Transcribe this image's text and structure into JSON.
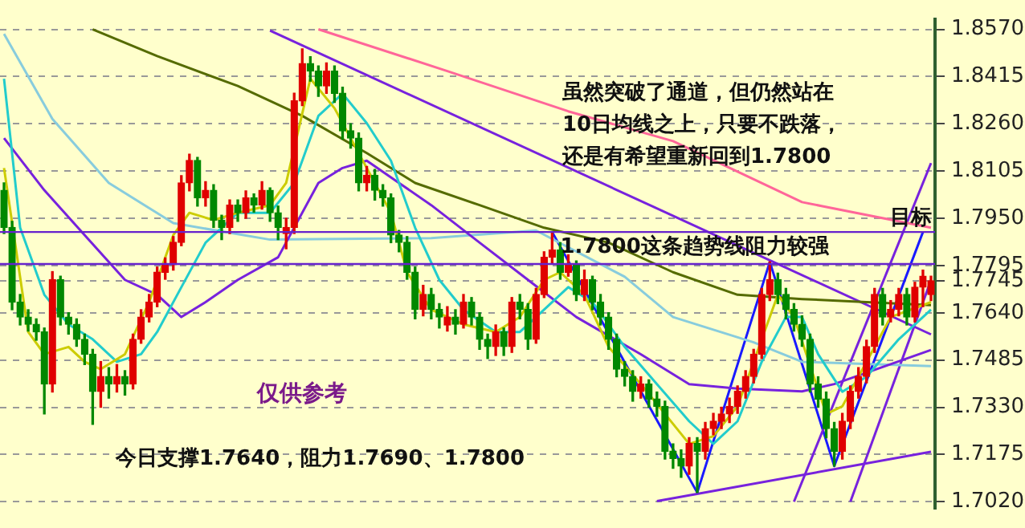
{
  "chart_data": {
    "type": "candlestick",
    "categories": [
      null,
      null,
      null,
      null,
      null,
      null,
      null,
      null,
      null,
      null,
      null,
      null,
      null,
      null,
      null,
      null,
      null,
      null,
      null,
      null,
      null,
      null,
      null,
      null,
      null,
      null,
      null,
      null,
      null,
      null,
      null,
      null,
      null,
      null,
      null,
      null,
      null,
      null,
      null,
      null,
      null,
      null,
      null,
      null,
      null,
      null,
      null,
      null,
      null,
      null,
      null,
      null,
      null,
      null,
      null,
      null,
      null,
      null,
      null,
      null,
      null,
      null,
      null,
      null,
      null,
      null,
      null,
      null,
      null,
      null,
      null,
      null,
      null,
      null,
      null,
      null,
      null,
      null,
      null,
      null,
      null,
      null,
      null,
      null,
      null,
      null,
      null,
      null,
      null,
      null,
      null,
      null,
      null,
      null,
      null,
      null,
      null,
      null,
      null,
      null,
      null,
      null,
      null,
      null,
      null,
      null,
      null,
      null,
      null,
      null,
      null,
      null,
      null,
      null,
      null,
      null
    ],
    "ohlc": [
      [
        1.8042,
        1.8066,
        1.79,
        1.792
      ],
      [
        1.792,
        1.794,
        1.765,
        1.7675
      ],
      [
        1.7675,
        1.77,
        1.76,
        1.7626
      ],
      [
        1.7626,
        1.765,
        1.758,
        1.7602
      ],
      [
        1.7602,
        1.762,
        1.755,
        1.7577
      ],
      [
        1.7577,
        1.759,
        1.7308,
        1.7406
      ],
      [
        1.7406,
        1.7775,
        1.738,
        1.7749
      ],
      [
        1.7749,
        1.776,
        1.76,
        1.7626
      ],
      [
        1.7626,
        1.764,
        1.757,
        1.7602
      ],
      [
        1.7602,
        1.762,
        1.753,
        1.7553
      ],
      [
        1.7553,
        1.757,
        1.747,
        1.7504
      ],
      [
        1.7504,
        1.752,
        1.7274,
        1.7382
      ],
      [
        1.7382,
        1.748,
        1.733,
        1.7431
      ],
      [
        1.7431,
        1.746,
        1.736,
        1.7406
      ],
      [
        1.7406,
        1.747,
        1.738,
        1.7431
      ],
      [
        1.7431,
        1.745,
        1.737,
        1.7406
      ],
      [
        1.7406,
        1.757,
        1.739,
        1.7553
      ],
      [
        1.7553,
        1.765,
        1.754,
        1.7626
      ],
      [
        1.7626,
        1.77,
        1.761,
        1.7675
      ],
      [
        1.7675,
        1.779,
        1.766,
        1.7773
      ],
      [
        1.7773,
        1.782,
        1.775,
        1.7798
      ],
      [
        1.7798,
        1.789,
        1.778,
        1.7871
      ],
      [
        1.7871,
        1.809,
        1.786,
        1.8066
      ],
      [
        1.8066,
        1.816,
        1.804,
        1.814
      ],
      [
        1.814,
        1.815,
        1.799,
        1.8017
      ],
      [
        1.8017,
        1.807,
        1.799,
        1.8042
      ],
      [
        1.8042,
        1.806,
        1.792,
        1.7944
      ],
      [
        1.7944,
        1.796,
        1.788,
        1.792
      ],
      [
        1.792,
        1.801,
        1.79,
        1.7993
      ],
      [
        1.7993,
        1.801,
        1.794,
        1.7968
      ],
      [
        1.7968,
        1.804,
        1.795,
        1.8017
      ],
      [
        1.8017,
        1.803,
        1.797,
        1.7993
      ],
      [
        1.7993,
        1.807,
        1.798,
        1.8042
      ],
      [
        1.8042,
        1.805,
        1.794,
        1.7968
      ],
      [
        1.7968,
        1.799,
        1.788,
        1.792
      ],
      [
        1.79,
        1.795,
        1.785,
        1.792
      ],
      [
        1.792,
        1.836,
        1.79,
        1.8335
      ],
      [
        1.8335,
        1.8506,
        1.832,
        1.8458
      ],
      [
        1.8458,
        1.848,
        1.84,
        1.8433
      ],
      [
        1.8433,
        1.845,
        1.835,
        1.8384
      ],
      [
        1.8384,
        1.846,
        1.836,
        1.8433
      ],
      [
        1.8433,
        1.845,
        1.833,
        1.836
      ],
      [
        1.836,
        1.838,
        1.821,
        1.8237
      ],
      [
        1.8237,
        1.826,
        1.818,
        1.8213
      ],
      [
        1.8213,
        1.823,
        1.804,
        1.8066
      ],
      [
        1.8066,
        1.812,
        1.804,
        1.8091
      ],
      [
        1.8091,
        1.811,
        1.801,
        1.8042
      ],
      [
        1.8042,
        1.806,
        1.799,
        1.8017
      ],
      [
        1.8017,
        1.803,
        1.787,
        1.7895
      ],
      [
        1.7895,
        1.791,
        1.784,
        1.7871
      ],
      [
        1.7871,
        1.789,
        1.775,
        1.7773
      ],
      [
        1.7773,
        1.779,
        1.762,
        1.7651
      ],
      [
        1.7651,
        1.773,
        1.763,
        1.77
      ],
      [
        1.77,
        1.772,
        1.762,
        1.7651
      ],
      [
        1.7651,
        1.767,
        1.759,
        1.7626
      ],
      [
        1.76,
        1.766,
        1.758,
        1.7626
      ],
      [
        1.7626,
        1.765,
        1.757,
        1.7602
      ],
      [
        1.7602,
        1.77,
        1.759,
        1.7675
      ],
      [
        1.7675,
        1.769,
        1.76,
        1.7626
      ],
      [
        1.7626,
        1.764,
        1.752,
        1.7553
      ],
      [
        1.7553,
        1.757,
        1.749,
        1.7529
      ],
      [
        1.7529,
        1.76,
        1.75,
        1.7577
      ],
      [
        1.7577,
        1.759,
        1.75,
        1.7529
      ],
      [
        1.7529,
        1.769,
        1.751,
        1.7675
      ],
      [
        1.7675,
        1.77,
        1.762,
        1.7651
      ],
      [
        1.7651,
        1.767,
        1.752,
        1.7553
      ],
      [
        1.7553,
        1.772,
        1.754,
        1.77
      ],
      [
        1.77,
        1.784,
        1.769,
        1.7822
      ],
      [
        1.7822,
        1.7905,
        1.78,
        1.7846
      ],
      [
        1.7846,
        1.787,
        1.775,
        1.7773
      ],
      [
        1.7773,
        1.783,
        1.776,
        1.7798
      ],
      [
        1.7798,
        1.781,
        1.768,
        1.77
      ],
      [
        1.77,
        1.778,
        1.768,
        1.7749
      ],
      [
        1.7749,
        1.776,
        1.765,
        1.7675
      ],
      [
        1.7675,
        1.77,
        1.76,
        1.7626
      ],
      [
        1.7626,
        1.764,
        1.752,
        1.7553
      ],
      [
        1.7553,
        1.757,
        1.743,
        1.7455
      ],
      [
        1.7455,
        1.748,
        1.74,
        1.7431
      ],
      [
        1.7431,
        1.745,
        1.735,
        1.7382
      ],
      [
        1.7382,
        1.743,
        1.736,
        1.7406
      ],
      [
        1.7406,
        1.742,
        1.733,
        1.7357
      ],
      [
        1.7357,
        1.738,
        1.73,
        1.7333
      ],
      [
        1.7333,
        1.735,
        1.716,
        1.7186
      ],
      [
        1.7186,
        1.721,
        1.713,
        1.7162
      ],
      [
        1.7162,
        1.719,
        1.71,
        1.7137
      ],
      [
        1.7137,
        1.723,
        1.711,
        1.7211
      ],
      [
        1.7211,
        1.723,
        1.705,
        1.7186
      ],
      [
        1.7186,
        1.728,
        1.716,
        1.726
      ],
      [
        1.726,
        1.731,
        1.724,
        1.7284
      ],
      [
        1.7284,
        1.733,
        1.726,
        1.7308
      ],
      [
        1.7308,
        1.736,
        1.728,
        1.7333
      ],
      [
        1.7333,
        1.74,
        1.731,
        1.7382
      ],
      [
        1.7382,
        1.745,
        1.736,
        1.7431
      ],
      [
        1.7431,
        1.752,
        1.741,
        1.7504
      ],
      [
        1.7504,
        1.772,
        1.749,
        1.77
      ],
      [
        1.77,
        1.7807,
        1.768,
        1.7749
      ],
      [
        1.7749,
        1.777,
        1.767,
        1.77
      ],
      [
        1.77,
        1.772,
        1.762,
        1.7651
      ],
      [
        1.7651,
        1.767,
        1.758,
        1.7602
      ],
      [
        1.7602,
        1.763,
        1.753,
        1.7553
      ],
      [
        1.7553,
        1.757,
        1.738,
        1.7406
      ],
      [
        1.7406,
        1.743,
        1.733,
        1.7357
      ],
      [
        1.7357,
        1.738,
        1.723,
        1.726
      ],
      [
        1.726,
        1.728,
        1.7137,
        1.7186
      ],
      [
        1.7186,
        1.731,
        1.716,
        1.7284
      ],
      [
        1.7284,
        1.74,
        1.726,
        1.7382
      ],
      [
        1.7382,
        1.746,
        1.736,
        1.7431
      ],
      [
        1.7431,
        1.755,
        1.741,
        1.7529
      ],
      [
        1.7529,
        1.772,
        1.751,
        1.77
      ],
      [
        1.77,
        1.772,
        1.76,
        1.7626
      ],
      [
        1.7626,
        1.768,
        1.761,
        1.7651
      ],
      [
        1.7651,
        1.772,
        1.763,
        1.77
      ],
      [
        1.77,
        1.772,
        1.76,
        1.7626
      ],
      [
        1.7626,
        1.774,
        1.761,
        1.7724
      ],
      [
        1.7724,
        1.778,
        1.766,
        1.776
      ],
      [
        1.77,
        1.776,
        1.768,
        1.7745
      ]
    ],
    "series": [
      {
        "type": "line",
        "color": "#cccc00",
        "values": [
          1.8115,
          null,
          null,
          1.7577,
          null,
          1.7504,
          null,
          null,
          1.7528,
          null,
          1.7479,
          null,
          1.7455,
          null,
          null,
          1.7504,
          null,
          null,
          1.7675,
          null,
          null,
          1.7895,
          null,
          1.7968,
          null,
          null,
          1.7944,
          null,
          null,
          1.7968,
          null,
          null,
          null,
          1.7993,
          null,
          1.8066,
          null,
          null,
          1.8408,
          null,
          null,
          1.8311,
          null,
          null,
          null,
          1.8115,
          null,
          null,
          1.7968,
          null,
          1.7773,
          null,
          null,
          1.765,
          null,
          null,
          null,
          1.7602,
          null,
          null,
          null,
          1.7577,
          null,
          null,
          1.7626,
          null,
          null,
          1.7748,
          null,
          1.7773,
          null,
          null,
          1.7699,
          null,
          null,
          1.7528,
          null,
          null,
          null,
          1.7406,
          null,
          null,
          1.7308,
          null,
          null,
          1.721,
          null,
          null,
          1.7235,
          null,
          null,
          1.7333,
          null,
          null,
          null,
          null,
          1.7699,
          null,
          1.7626,
          null,
          null,
          null,
          1.7308,
          null,
          1.7333,
          null,
          null,
          1.7479,
          null,
          null,
          1.7626,
          null,
          null,
          null,
          null,
          1.7675
        ]
      },
      {
        "type": "line",
        "color": "#22cccc",
        "values": [
          1.8408,
          null,
          1.7919,
          null,
          null,
          1.7699,
          null,
          null,
          1.7602,
          null,
          null,
          1.7553,
          null,
          null,
          1.7479,
          null,
          null,
          1.7504,
          null,
          1.7577,
          null,
          null,
          1.7724,
          null,
          null,
          1.787,
          null,
          null,
          null,
          1.7968,
          null,
          null,
          null,
          1.7968,
          null,
          null,
          1.8066,
          null,
          null,
          1.8286,
          null,
          null,
          1.8359,
          null,
          null,
          1.8262,
          null,
          null,
          1.8139,
          null,
          null,
          1.7919,
          null,
          null,
          1.7748,
          null,
          null,
          1.765,
          null,
          null,
          null,
          1.7577,
          null,
          null,
          1.7577,
          null,
          null,
          1.765,
          null,
          null,
          1.7724,
          null,
          null,
          1.7675,
          null,
          null,
          null,
          1.7528,
          null,
          null,
          null,
          1.7406,
          null,
          null,
          null,
          1.7284,
          null,
          null,
          1.721,
          null,
          null,
          1.7284,
          null,
          null,
          1.7479,
          null,
          null,
          1.7626,
          null,
          1.7626,
          null,
          1.7504,
          null,
          null,
          1.7381,
          null,
          null,
          1.743,
          null,
          null,
          null,
          1.7553,
          null,
          null,
          null,
          1.765
        ]
      },
      {
        "type": "line",
        "color": "#7722dd",
        "values": [
          1.8213,
          null,
          null,
          null,
          null,
          1.8042,
          null,
          null,
          null,
          null,
          1.7895,
          null,
          null,
          null,
          null,
          1.7748,
          null,
          null,
          null,
          1.7699,
          null,
          null,
          1.7626,
          null,
          null,
          1.7675,
          null,
          null,
          null,
          1.7748,
          null,
          null,
          null,
          null,
          1.7822,
          null,
          null,
          null,
          null,
          1.8066,
          null,
          null,
          1.8115,
          null,
          null,
          1.8139,
          null,
          null,
          null,
          1.8066,
          null,
          null,
          null,
          1.7993,
          null,
          null,
          null,
          null,
          null,
          1.787,
          null,
          null,
          null,
          null,
          null,
          1.7748,
          null,
          null,
          null,
          null,
          null,
          1.7626,
          null,
          null,
          null,
          null,
          null,
          null,
          null,
          1.7504,
          null,
          null,
          null,
          null,
          null,
          1.7406,
          null,
          null,
          null,
          null,
          null,
          1.7391,
          null,
          null,
          null,
          null,
          null,
          null,
          null,
          1.7382,
          null,
          null,
          null,
          1.7406,
          null,
          null,
          null,
          null,
          null,
          null,
          null,
          null,
          null,
          null,
          null,
          1.7518
        ]
      },
      {
        "type": "line",
        "color": "#556b00",
        "values": [
          null,
          null,
          null,
          null,
          null,
          null,
          null,
          null,
          null,
          null,
          null,
          1.857,
          null,
          null,
          null,
          null,
          null,
          null,
          null,
          1.8482,
          null,
          null,
          null,
          null,
          null,
          null,
          null,
          null,
          null,
          1.8384,
          null,
          null,
          null,
          null,
          null,
          null,
          null,
          1.8286,
          null,
          null,
          null,
          null,
          null,
          null,
          null,
          1.8164,
          null,
          null,
          null,
          null,
          null,
          1.8066,
          null,
          null,
          null,
          null,
          null,
          null,
          null,
          1.7993,
          null,
          null,
          null,
          null,
          null,
          null,
          null,
          1.7919,
          null,
          null,
          null,
          null,
          null,
          null,
          null,
          1.787,
          null,
          null,
          null,
          null,
          null,
          null,
          null,
          1.7773,
          null,
          null,
          null,
          null,
          null,
          null,
          null,
          1.7699,
          null,
          null,
          null,
          null,
          null,
          null,
          null,
          1.7685,
          null,
          null,
          null,
          null,
          null,
          null,
          null,
          1.7675,
          null,
          null,
          null,
          null,
          null,
          null,
          null,
          1.7665
        ]
      },
      {
        "type": "line",
        "color": "#ff6699",
        "values": [
          null,
          null,
          null,
          null,
          null,
          null,
          null,
          null,
          null,
          null,
          null,
          null,
          null,
          null,
          null,
          null,
          null,
          null,
          null,
          null,
          null,
          null,
          null,
          null,
          null,
          null,
          null,
          null,
          null,
          null,
          null,
          null,
          null,
          null,
          null,
          null,
          null,
          null,
          null,
          1.857,
          null,
          null,
          null,
          null,
          null,
          null,
          null,
          null,
          null,
          null,
          null,
          null,
          null,
          null,
          null,
          1.8433,
          null,
          null,
          null,
          null,
          null,
          null,
          null,
          null,
          null,
          null,
          null,
          null,
          null,
          null,
          1.8301,
          null,
          null,
          null,
          null,
          null,
          null,
          null,
          null,
          null,
          null,
          null,
          null,
          1.8203,
          null,
          null,
          null,
          null,
          null,
          null,
          null,
          null,
          null,
          null,
          null,
          null,
          null,
          null,
          null,
          1.8003,
          null,
          null,
          null,
          null,
          null,
          null,
          null,
          null,
          null,
          null,
          null,
          null,
          null,
          null,
          null,
          1.7919
        ]
      },
      {
        "type": "line",
        "color": "#88ccdd",
        "values": [
          1.8555,
          null,
          null,
          null,
          null,
          null,
          1.8276,
          null,
          null,
          null,
          null,
          null,
          null,
          1.8066,
          null,
          null,
          null,
          null,
          null,
          null,
          null,
          1.7934,
          null,
          null,
          null,
          null,
          null,
          null,
          null,
          null,
          null,
          null,
          null,
          1.788,
          null,
          null,
          null,
          null,
          null,
          null,
          null,
          null,
          null,
          null,
          null,
          null,
          null,
          null,
          null,
          null,
          null,
          null,
          null,
          1.7885,
          null,
          null,
          null,
          null,
          null,
          null,
          null,
          null,
          null,
          null,
          null,
          null,
          1.791,
          null,
          null,
          null,
          null,
          null,
          null,
          null,
          null,
          null,
          null,
          1.7758,
          null,
          null,
          null,
          null,
          null,
          1.7626,
          null,
          null,
          null,
          null,
          null,
          null,
          null,
          null,
          null,
          1.7543,
          null,
          null,
          null,
          null,
          null,
          1.7479,
          null,
          null,
          null,
          null,
          null,
          null,
          null,
          null,
          null,
          null,
          null,
          null,
          null,
          null,
          null,
          1.7465
        ]
      },
      {
        "type": "line",
        "color": "#7722dd",
        "values": [
          null,
          null,
          null,
          null,
          null,
          null,
          null,
          null,
          null,
          null,
          null,
          null,
          null,
          null,
          null,
          null,
          null,
          null,
          null,
          null,
          null,
          null,
          null,
          null,
          null,
          null,
          null,
          null,
          null,
          null,
          null,
          null,
          null,
          1.8566,
          null,
          null,
          null,
          null,
          null,
          null,
          null,
          null,
          null,
          null,
          null,
          null,
          null,
          null,
          null,
          null,
          null,
          null,
          null,
          null,
          null,
          null,
          null,
          null,
          null,
          null,
          null,
          null,
          null,
          null,
          null,
          null,
          null,
          null,
          null,
          null,
          null,
          null,
          null,
          null,
          null,
          null,
          null,
          null,
          null,
          null,
          null,
          null,
          null,
          null,
          null,
          null,
          null,
          null,
          null,
          null,
          null,
          null,
          null,
          null,
          null,
          null,
          null,
          null,
          null,
          null,
          null,
          null,
          null,
          null,
          null,
          null,
          null,
          null,
          null,
          null,
          null,
          null,
          null,
          null,
          null,
          1.7569
        ]
      },
      {
        "type": "line",
        "color": "#7722dd",
        "values": [
          null,
          null,
          null,
          null,
          null,
          null,
          null,
          null,
          null,
          null,
          null,
          null,
          null,
          null,
          null,
          null,
          null,
          null,
          null,
          null,
          null,
          null,
          null,
          null,
          null,
          null,
          null,
          null,
          null,
          null,
          null,
          null,
          null,
          null,
          null,
          null,
          null,
          null,
          null,
          null,
          null,
          null,
          null,
          null,
          null,
          null,
          null,
          null,
          null,
          null,
          null,
          null,
          null,
          null,
          null,
          null,
          null,
          null,
          null,
          null,
          null,
          null,
          null,
          null,
          null,
          null,
          null,
          null,
          null,
          null,
          null,
          null,
          null,
          null,
          null,
          null,
          null,
          null,
          null,
          null,
          null,
          1.7022,
          null,
          null,
          null,
          null,
          null,
          null,
          null,
          null,
          null,
          null,
          null,
          null,
          null,
          null,
          null,
          null,
          null,
          null,
          null,
          null,
          null,
          null,
          null,
          null,
          null,
          null,
          null,
          null,
          null,
          null,
          null,
          null,
          null,
          1.7184
        ]
      },
      {
        "type": "line",
        "color": "#7722dd",
        "values": [
          null,
          null,
          null,
          null,
          null,
          null,
          null,
          null,
          null,
          null,
          null,
          null,
          null,
          null,
          null,
          null,
          null,
          null,
          null,
          null,
          null,
          null,
          null,
          null,
          null,
          null,
          null,
          null,
          null,
          null,
          null,
          null,
          null,
          null,
          null,
          null,
          null,
          null,
          null,
          null,
          null,
          null,
          null,
          null,
          null,
          null,
          null,
          null,
          null,
          null,
          null,
          null,
          null,
          null,
          null,
          null,
          null,
          null,
          null,
          null,
          null,
          null,
          null,
          null,
          null,
          null,
          null,
          null,
          null,
          null,
          null,
          null,
          null,
          null,
          null,
          null,
          null,
          null,
          null,
          null,
          null,
          null,
          null,
          null,
          null,
          null,
          null,
          null,
          null,
          null,
          null,
          null,
          null,
          null,
          null,
          null,
          null,
          null,
          1.702,
          null,
          null,
          null,
          null,
          null,
          null,
          null,
          null,
          null,
          null,
          null,
          null,
          null,
          null,
          null,
          null,
          1.8131
        ]
      },
      {
        "type": "line",
        "color": "#7722dd",
        "values": [
          null,
          null,
          null,
          null,
          null,
          null,
          null,
          null,
          null,
          null,
          null,
          null,
          null,
          null,
          null,
          null,
          null,
          null,
          null,
          null,
          null,
          null,
          null,
          null,
          null,
          null,
          null,
          null,
          null,
          null,
          null,
          null,
          null,
          null,
          null,
          null,
          null,
          null,
          null,
          null,
          null,
          null,
          null,
          null,
          null,
          null,
          null,
          null,
          null,
          null,
          null,
          null,
          null,
          null,
          null,
          null,
          null,
          null,
          null,
          null,
          null,
          null,
          null,
          null,
          null,
          null,
          null,
          null,
          null,
          null,
          null,
          null,
          null,
          null,
          null,
          null,
          null,
          null,
          null,
          null,
          null,
          null,
          null,
          null,
          null,
          null,
          null,
          null,
          null,
          null,
          null,
          null,
          null,
          null,
          null,
          null,
          null,
          null,
          null,
          null,
          null,
          null,
          null,
          null,
          null,
          1.702,
          null,
          null,
          null,
          null,
          null,
          null,
          null,
          null,
          null,
          1.7747
        ]
      },
      {
        "type": "line",
        "color": "#1a1aff",
        "values": [
          null,
          null,
          null,
          null,
          null,
          null,
          null,
          null,
          null,
          null,
          null,
          null,
          null,
          null,
          null,
          null,
          null,
          null,
          null,
          null,
          null,
          null,
          null,
          null,
          null,
          null,
          null,
          null,
          null,
          null,
          null,
          null,
          null,
          null,
          null,
          null,
          null,
          null,
          null,
          null,
          null,
          null,
          null,
          null,
          null,
          null,
          null,
          null,
          null,
          null,
          null,
          null,
          null,
          null,
          null,
          null,
          null,
          null,
          null,
          null,
          null,
          null,
          null,
          null,
          null,
          null,
          null,
          null,
          1.7905,
          null,
          null,
          null,
          null,
          null,
          null,
          null,
          null,
          null,
          null,
          null,
          null,
          null,
          null,
          null,
          null,
          null,
          1.705,
          null,
          null,
          null,
          null,
          null,
          null,
          null,
          null,
          1.7807,
          null,
          null,
          null,
          null,
          null,
          null,
          null,
          1.7137,
          null,
          null,
          null,
          null,
          null,
          null,
          null,
          null,
          null,
          null,
          1.7905,
          null
        ]
      }
    ],
    "ylim": [
      1.6996,
      1.8604
    ],
    "yticks": [
      {
        "value": 1.702,
        "label": "1.7020"
      },
      {
        "value": 1.7175,
        "label": "1.7175"
      },
      {
        "value": 1.733,
        "label": "1.7330"
      },
      {
        "value": 1.7485,
        "label": "1.7485"
      },
      {
        "value": 1.764,
        "label": "1.7640"
      },
      {
        "value": 1.7745,
        "label": "1.7745"
      },
      {
        "value": 1.7795,
        "label": "1.7795"
      },
      {
        "value": 1.795,
        "label": "1.7950"
      },
      {
        "value": 1.8105,
        "label": "1.8105"
      },
      {
        "value": 1.826,
        "label": "1.8260"
      },
      {
        "value": 1.8415,
        "label": "1.8415"
      },
      {
        "value": 1.857,
        "label": "1.8570"
      }
    ],
    "tick_labels": "y",
    "grid": "y",
    "ref_lines": [
      {
        "axis": "y",
        "value": 1.7905,
        "color": "#6622cc"
      },
      {
        "axis": "y",
        "value": 1.78,
        "label": "1.7800这条趋势线阻力较强",
        "color": "#6622cc"
      }
    ],
    "annotations": [
      "虽然突破了通道，但仍然站在",
      "10日均线之上，只要不跌落，",
      "还是有希望重新回到1.7800",
      "仅供参考",
      "今日支撑1.7640，阻力1.7690、1.7800",
      "目标"
    ]
  }
}
